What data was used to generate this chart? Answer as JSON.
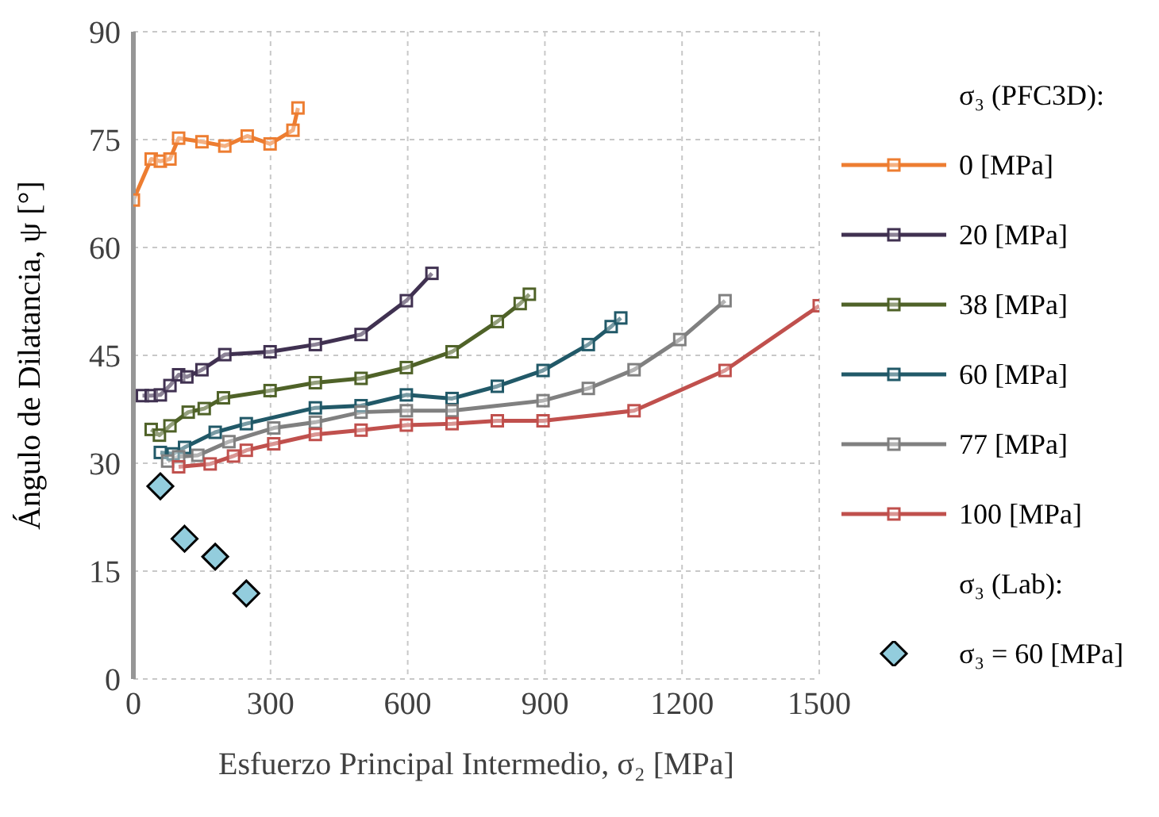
{
  "chart_data": {
    "type": "line",
    "xlabel": "Esfuerzo Principal Intermedio, σ₂ [MPa]",
    "ylabel": "Ángulo de Dilatancia, ψ [°]",
    "legend_title": "σ₃ (PFC3D):",
    "annotations": [
      "σ₃ (Lab):"
    ],
    "xlim": [
      0,
      1500
    ],
    "xticks": [
      0,
      300,
      600,
      900,
      1200,
      1500
    ],
    "ylim": [
      0,
      90
    ],
    "yticks": [
      0,
      15,
      30,
      45,
      60,
      75,
      90
    ],
    "grid": true,
    "legend": "right",
    "marker": "square",
    "line_style": "solid",
    "series": [
      {
        "name": "0 [MPa]",
        "color": "#ed7d31",
        "x": [
          0,
          39,
          59,
          80,
          99,
          150,
          200,
          249,
          299,
          349,
          360
        ],
        "values": [
          66.6,
          72.3,
          72.0,
          72.3,
          75.2,
          74.7,
          74.1,
          75.5,
          74.4,
          76.3,
          79.4
        ]
      },
      {
        "name": "20 [MPa]",
        "color": "#403151",
        "x": [
          20,
          39,
          59,
          80,
          99,
          117,
          150,
          200,
          299,
          398,
          498,
          597,
          653
        ],
        "values": [
          39.4,
          39.4,
          39.5,
          40.8,
          42.3,
          42.0,
          43.0,
          45.1,
          45.5,
          46.5,
          47.9,
          52.6,
          56.4
        ]
      },
      {
        "name": "38 [MPa]",
        "color": "#4f6228",
        "x": [
          39,
          57,
          80,
          120,
          155,
          197,
          299,
          398,
          498,
          597,
          697,
          796,
          846,
          866
        ],
        "values": [
          34.7,
          33.9,
          35.2,
          37.1,
          37.6,
          39.1,
          40.1,
          41.2,
          41.8,
          43.3,
          45.5,
          49.7,
          52.2,
          53.5
        ]
      },
      {
        "name": "60 [MPa]",
        "color": "#215968",
        "x": [
          59,
          87,
          112,
          179,
          247,
          398,
          498,
          597,
          697,
          796,
          896,
          995,
          1045,
          1066
        ],
        "values": [
          31.5,
          31.3,
          32.2,
          34.3,
          35.5,
          37.7,
          38.0,
          39.5,
          39.0,
          40.7,
          42.9,
          46.5,
          49.0,
          50.2
        ]
      },
      {
        "name": "77 [MPa]",
        "color": "#808080",
        "x": [
          75,
          99,
          141,
          209,
          307,
          398,
          498,
          597,
          697,
          896,
          995,
          1095,
          1195,
          1294
        ],
        "values": [
          30.3,
          30.9,
          31.1,
          33.0,
          34.9,
          35.7,
          37.1,
          37.3,
          37.3,
          38.7,
          40.4,
          43.0,
          47.2,
          52.6
        ]
      },
      {
        "name": "100 [MPa]",
        "color": "#c0504d",
        "x": [
          99,
          168,
          219,
          247,
          307,
          398,
          498,
          597,
          697,
          796,
          896,
          1095,
          1294,
          1500
        ],
        "values": [
          29.5,
          29.9,
          31.0,
          31.8,
          32.7,
          34.0,
          34.6,
          35.3,
          35.5,
          35.9,
          35.9,
          37.3,
          42.9,
          51.9
        ]
      },
      {
        "name": "σ₃ = 60 [MPa]",
        "type": "scatter",
        "marker": "diamond",
        "color": "#93cddd",
        "x": [
          59,
          112,
          179,
          247
        ],
        "values": [
          26.8,
          19.5,
          17.0,
          11.9
        ]
      }
    ]
  }
}
